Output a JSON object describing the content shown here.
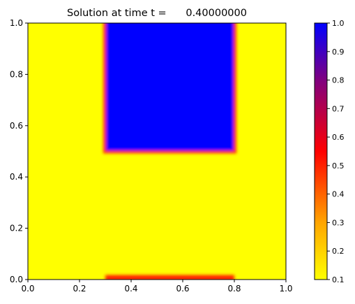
{
  "chart_data": {
    "type": "heatmap",
    "title": "Solution at time t =      0.40000000",
    "xlabel": "",
    "ylabel": "",
    "xlim": [
      0.0,
      1.0
    ],
    "ylim": [
      0.0,
      1.0
    ],
    "x_ticks": [
      "0.0",
      "0.2",
      "0.4",
      "0.6",
      "0.8",
      "1.0"
    ],
    "y_ticks": [
      "0.0",
      "0.2",
      "0.4",
      "0.6",
      "0.8",
      "1.0"
    ],
    "background_value": 0.1,
    "regions": [
      {
        "label": "high-region",
        "x_range": [
          0.3,
          0.8
        ],
        "y_range": [
          0.5,
          1.0
        ],
        "value": 1.0
      },
      {
        "label": "bottom-edge-band",
        "x_range": [
          0.3,
          0.8
        ],
        "y_range": [
          0.0,
          0.012
        ],
        "value": 0.5
      }
    ],
    "colorbar": {
      "range": [
        0.1,
        1.0
      ],
      "ticks": [
        "0.1",
        "0.2",
        "0.3",
        "0.4",
        "0.5",
        "0.6",
        "0.7",
        "0.8",
        "0.9",
        "1.0"
      ],
      "colors": [
        {
          "value": 0.1,
          "color": "#ffff00"
        },
        {
          "value": 0.3,
          "color": "#ffa500"
        },
        {
          "value": 0.55,
          "color": "#ff0000"
        },
        {
          "value": 0.8,
          "color": "#800080"
        },
        {
          "value": 1.0,
          "color": "#0000ff"
        }
      ]
    },
    "grid": false
  }
}
